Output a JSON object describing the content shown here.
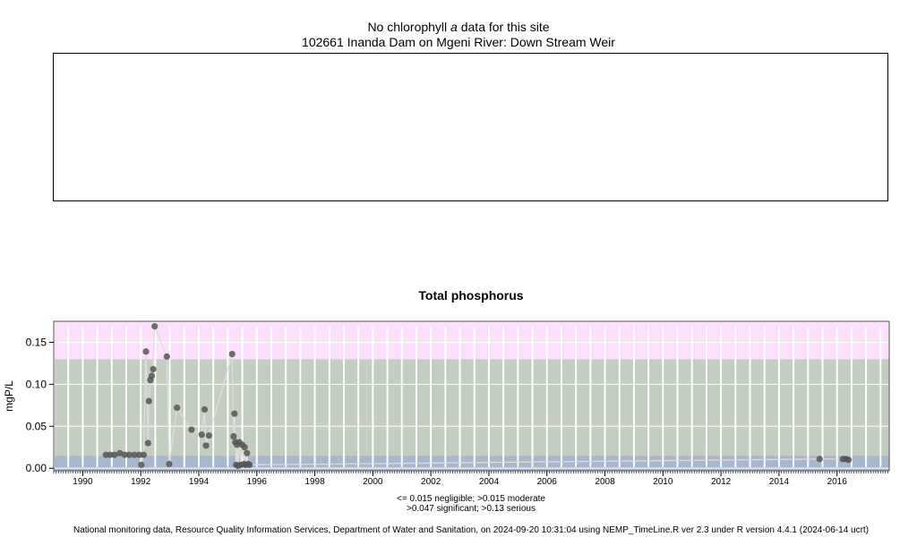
{
  "top_panel": {
    "title_prefix": "No chlorophyll",
    "title_italic": "a",
    "title_suffix": "data for this site",
    "site": "102661 Inanda Dam on Mgeni River: Down Stream Weir"
  },
  "footer": "National monitoring data, Resource Quality Information Services, Department of Water and Sanitation, on 2024-09-20 10:31:04 using NEMP_TimeLine.R ver 2.3 under R version 4.4.1 (2024-06-14 ucrt)",
  "colors": {
    "negligible": "#a7b7ce",
    "moderate": "#c3cdc0",
    "serious": "#fde0fb",
    "grid": "#ffffff",
    "points": "#555555",
    "line": "#dddddd"
  },
  "chart_data": {
    "type": "scatter",
    "title": "Total phosphorus",
    "xlabel": "",
    "ylabel": "mgP/L",
    "xlim": [
      1989.0,
      2017.8
    ],
    "ylim": [
      -0.003,
      0.175
    ],
    "x_ticks": [
      1990,
      1992,
      1994,
      1996,
      1998,
      2000,
      2002,
      2004,
      2006,
      2008,
      2010,
      2012,
      2014,
      2016
    ],
    "y_ticks": [
      0.0,
      0.05,
      0.1,
      0.15
    ],
    "y_tick_labels": [
      "0.00",
      "0.05",
      "0.10",
      "0.15"
    ],
    "bands": [
      {
        "label": "negligible",
        "from": -0.003,
        "to": 0.015,
        "color": "#a7b7ce"
      },
      {
        "label": "moderate",
        "from": 0.015,
        "to": 0.047,
        "color": "#c3cdc0"
      },
      {
        "label": "significant",
        "from": 0.047,
        "to": 0.13,
        "color": "#c3cdc0"
      },
      {
        "label": "serious",
        "from": 0.13,
        "to": 0.175,
        "color": "#fde0fb"
      }
    ],
    "legend_lines": [
      "<= 0.015 negligible; >0.015 moderate",
      ">0.047 significant; >0.13 serious"
    ],
    "series": [
      {
        "x": [
          1990.8,
          1990.95,
          1991.1,
          1991.28,
          1991.45,
          1991.6,
          1991.78,
          1991.95,
          1992.02,
          1992.1,
          1992.18,
          1992.25,
          1992.28,
          1992.33,
          1992.38,
          1992.43,
          1992.48,
          1992.9,
          1992.98,
          1993.25,
          1993.75,
          1994.1,
          1994.2,
          1994.25,
          1994.35,
          1995.15,
          1995.2,
          1995.23,
          1995.26,
          1995.29,
          1995.32,
          1995.35,
          1995.4,
          1995.45,
          1995.5,
          1995.55,
          1995.58,
          1995.62,
          1995.66,
          1995.7,
          1995.75,
          2015.4,
          2016.2,
          2016.3,
          2016.4
        ],
        "y": [
          0.016,
          0.016,
          0.016,
          0.018,
          0.016,
          0.016,
          0.016,
          0.016,
          0.004,
          0.016,
          0.139,
          0.03,
          0.08,
          0.105,
          0.11,
          0.118,
          0.169,
          0.133,
          0.005,
          0.072,
          0.046,
          0.04,
          0.07,
          0.027,
          0.039,
          0.136,
          0.038,
          0.065,
          0.031,
          0.004,
          0.028,
          0.003,
          0.031,
          0.004,
          0.028,
          0.005,
          0.025,
          0.004,
          0.018,
          0.005,
          0.004,
          0.011,
          0.011,
          0.011,
          0.01
        ]
      }
    ]
  }
}
